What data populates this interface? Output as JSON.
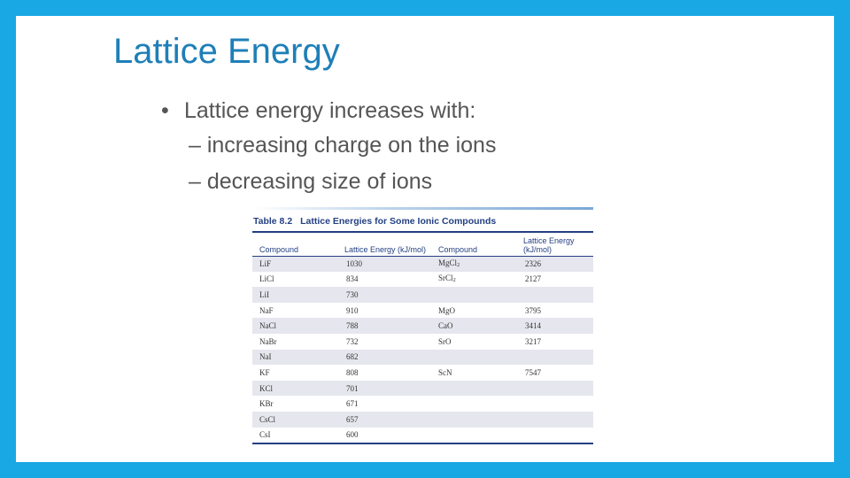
{
  "slide": {
    "title": "Lattice Energy",
    "bullets": [
      {
        "text": "Lattice energy increases with:",
        "subs": [
          "– increasing charge on the ions",
          "– decreasing size of ions"
        ]
      }
    ]
  },
  "table": {
    "number": "Table 8.2",
    "title": "Lattice Energies for Some Ionic Compounds",
    "headers": [
      "Compound",
      "Lattice Energy (kJ/mol)",
      "Compound",
      "Lattice Energy (kJ/mol)"
    ],
    "rows": [
      [
        "LiF",
        "1030",
        "MgCl2",
        "2326"
      ],
      [
        "LiCl",
        "834",
        "SrCl2",
        "2127"
      ],
      [
        "LiI",
        "730",
        "",
        ""
      ],
      [
        "NaF",
        "910",
        "MgO",
        "3795"
      ],
      [
        "NaCl",
        "788",
        "CaO",
        "3414"
      ],
      [
        "NaBr",
        "732",
        "SrO",
        "3217"
      ],
      [
        "NaI",
        "682",
        "",
        ""
      ],
      [
        "KF",
        "808",
        "ScN",
        "7547"
      ],
      [
        "KCl",
        "701",
        "",
        ""
      ],
      [
        "KBr",
        "671",
        "",
        ""
      ],
      [
        "CsCl",
        "657",
        "",
        ""
      ],
      [
        "CsI",
        "600",
        "",
        ""
      ]
    ]
  },
  "colors": {
    "frame": "#1aa8e4",
    "title": "#1e7fb8",
    "body_text": "#555555",
    "table_heading": "#233f82",
    "row_shade": "#e6e6ee"
  }
}
